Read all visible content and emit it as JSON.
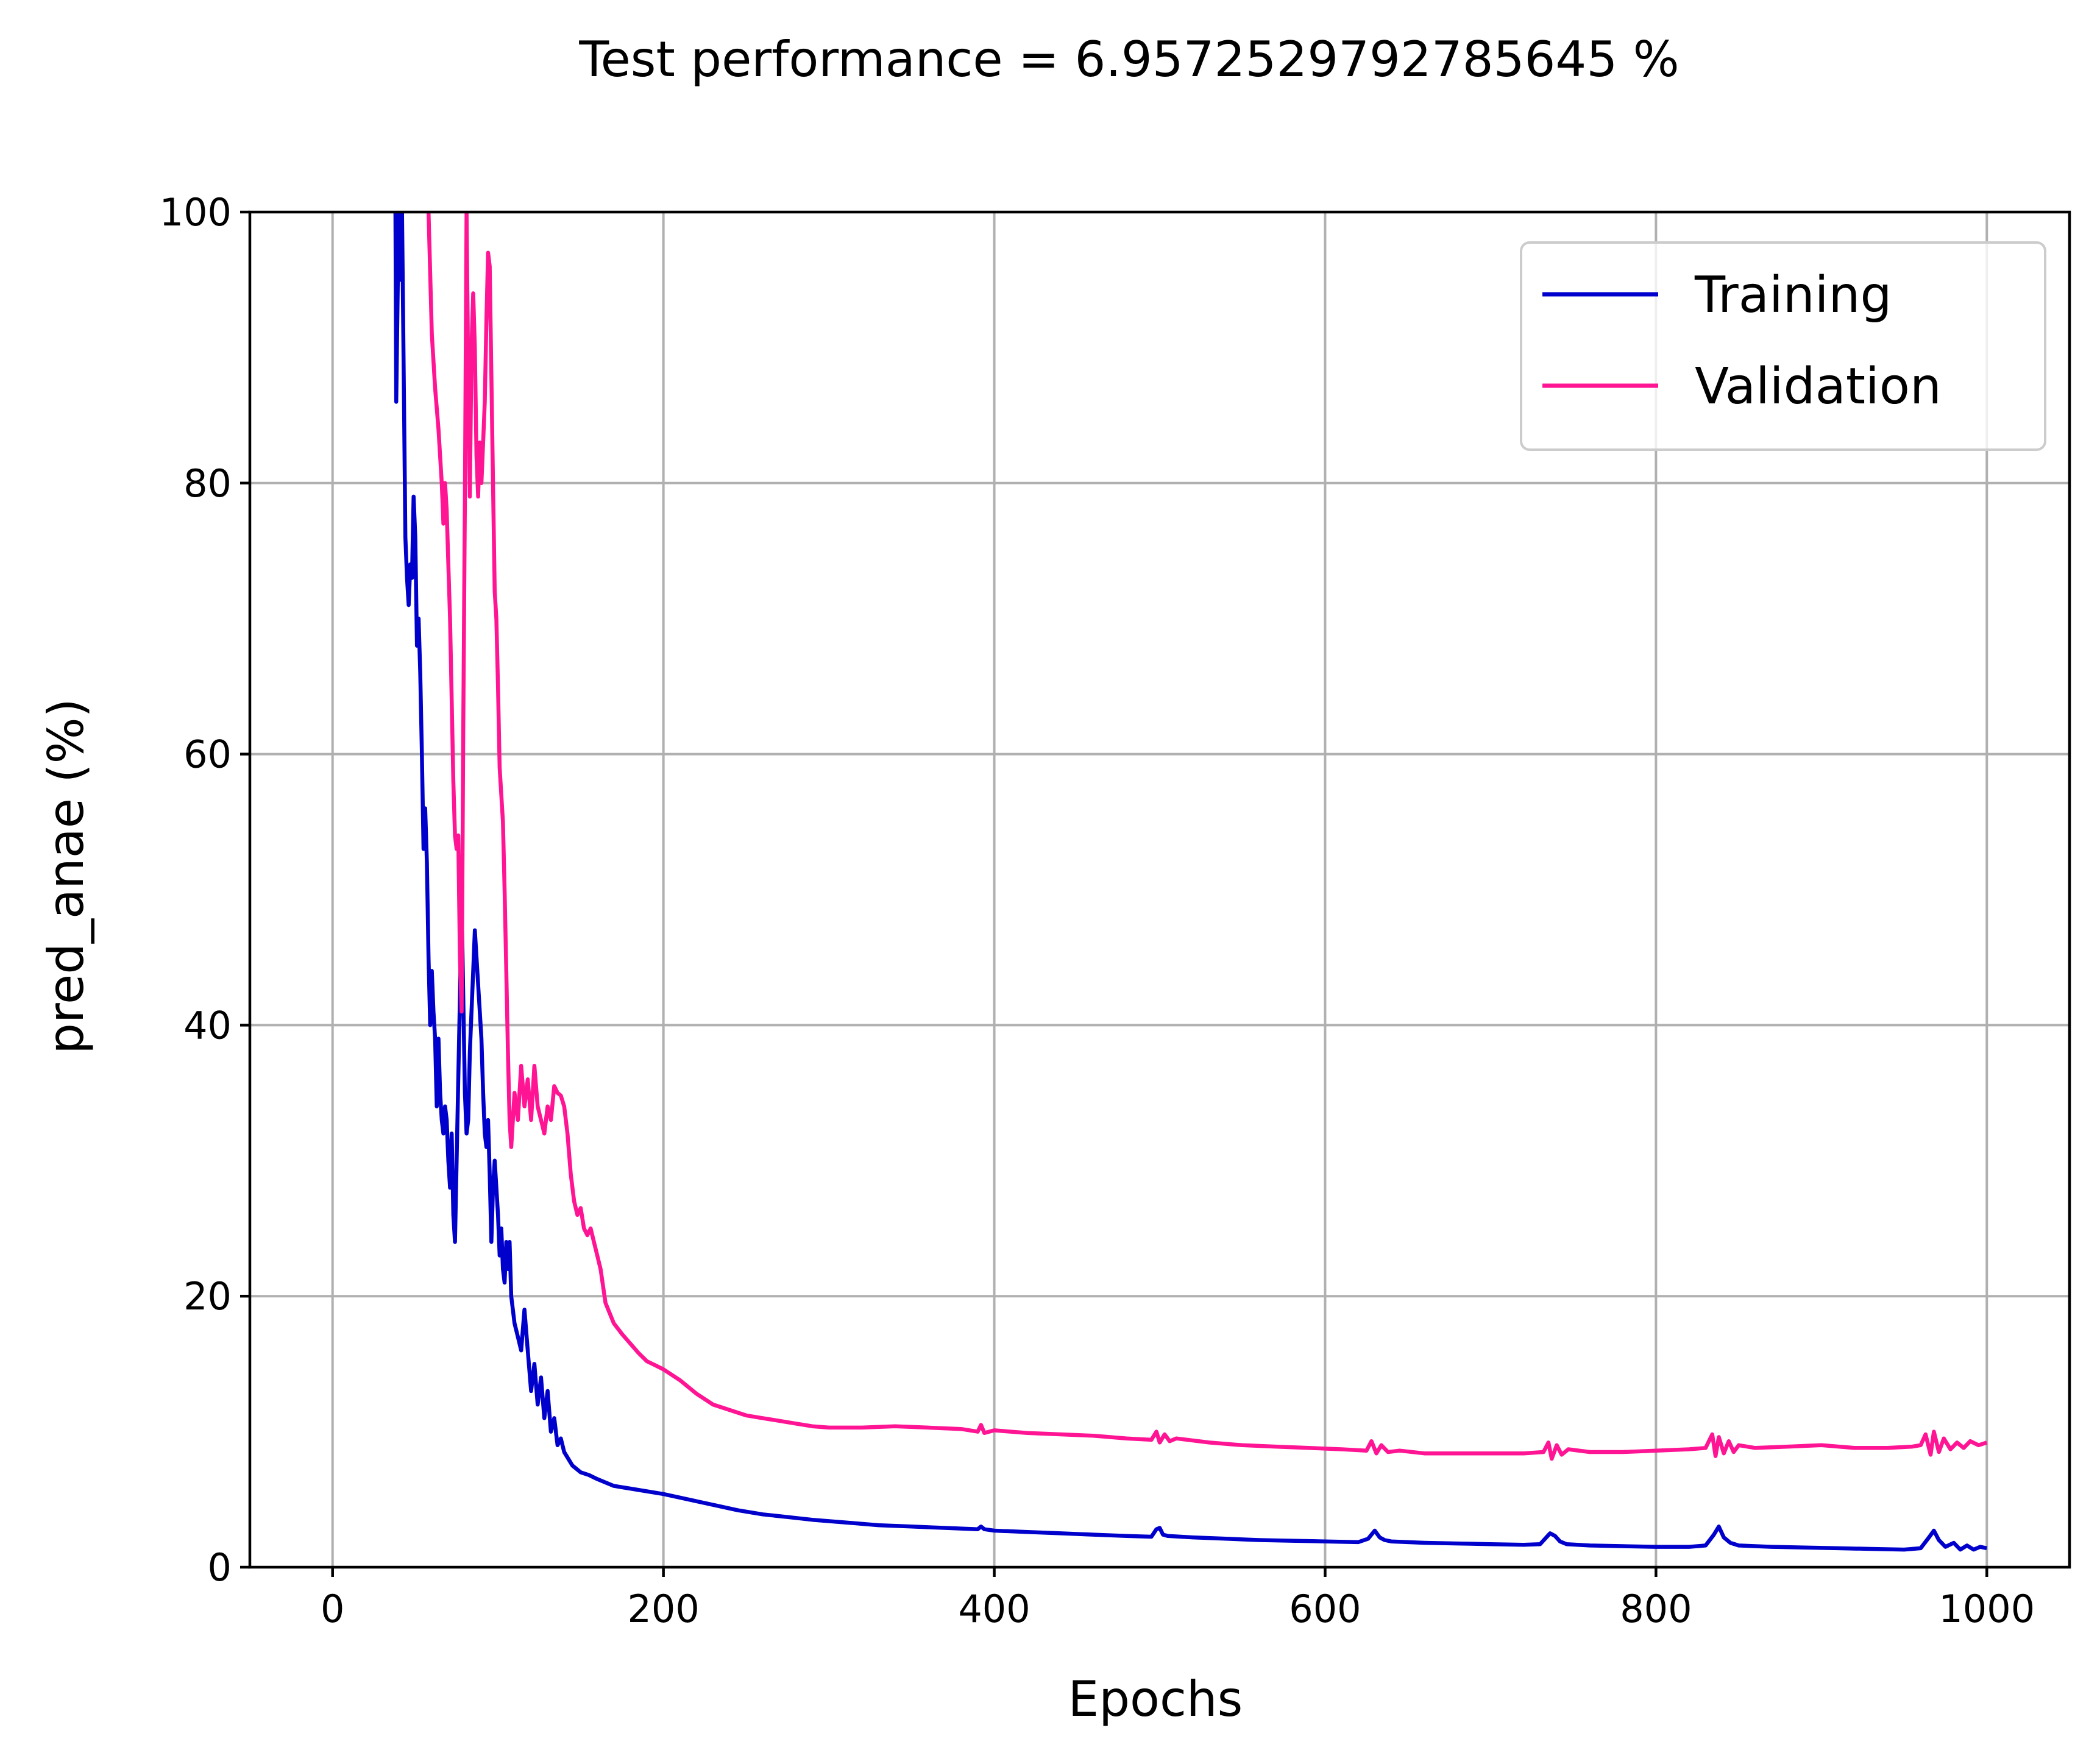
{
  "chart_data": {
    "type": "line",
    "title": "Test performance = 6.9572529792785645 %",
    "xlabel": "Epochs",
    "ylabel": "pred_anae (%)",
    "xlim": [
      -50,
      1050
    ],
    "ylim": [
      0,
      100
    ],
    "xticks": [
      0,
      200,
      400,
      600,
      800,
      1000
    ],
    "yticks": [
      0,
      20,
      40,
      60,
      80,
      100
    ],
    "grid": true,
    "legend_position": "top-right",
    "series": [
      {
        "name": "Training",
        "color": "#0000cc",
        "points": [
          [
            38,
            100
          ],
          [
            38.5,
            86
          ],
          [
            40,
            100
          ],
          [
            41,
            95
          ],
          [
            42,
            100
          ],
          [
            43,
            88
          ],
          [
            44,
            76
          ],
          [
            45,
            73
          ],
          [
            46,
            71
          ],
          [
            47,
            74
          ],
          [
            48,
            73
          ],
          [
            49,
            79
          ],
          [
            50,
            76
          ],
          [
            51,
            68
          ],
          [
            52,
            70
          ],
          [
            53,
            66
          ],
          [
            54,
            60
          ],
          [
            55,
            53
          ],
          [
            56,
            56
          ],
          [
            57,
            52
          ],
          [
            58,
            45
          ],
          [
            59,
            40
          ],
          [
            60,
            44
          ],
          [
            61,
            41
          ],
          [
            62,
            39
          ],
          [
            63,
            34
          ],
          [
            64,
            39
          ],
          [
            65,
            35
          ],
          [
            66,
            33
          ],
          [
            67,
            32
          ],
          [
            68,
            34
          ],
          [
            69,
            33
          ],
          [
            70,
            30
          ],
          [
            71,
            28
          ],
          [
            72,
            32
          ],
          [
            73,
            26
          ],
          [
            74,
            24
          ],
          [
            75,
            30
          ],
          [
            76,
            36
          ],
          [
            77,
            42
          ],
          [
            78,
            49
          ],
          [
            79,
            42
          ],
          [
            80,
            35
          ],
          [
            81,
            32
          ],
          [
            82,
            33
          ],
          [
            83,
            38
          ],
          [
            84,
            41
          ],
          [
            85,
            44
          ],
          [
            86,
            47
          ],
          [
            87,
            45
          ],
          [
            88,
            43
          ],
          [
            89,
            41
          ],
          [
            90,
            39
          ],
          [
            91,
            35
          ],
          [
            92,
            32
          ],
          [
            93,
            31
          ],
          [
            94,
            33
          ],
          [
            95,
            29
          ],
          [
            96,
            24
          ],
          [
            97,
            28
          ],
          [
            98,
            30
          ],
          [
            99,
            28
          ],
          [
            100,
            26
          ],
          [
            101,
            23
          ],
          [
            102,
            25
          ],
          [
            103,
            22
          ],
          [
            104,
            21
          ],
          [
            105,
            24
          ],
          [
            106,
            22
          ],
          [
            107,
            24
          ],
          [
            108,
            20
          ],
          [
            109,
            19
          ],
          [
            110,
            18
          ],
          [
            112,
            17
          ],
          [
            114,
            16
          ],
          [
            116,
            19
          ],
          [
            118,
            16
          ],
          [
            120,
            13
          ],
          [
            122,
            15
          ],
          [
            124,
            12
          ],
          [
            126,
            14
          ],
          [
            128,
            11
          ],
          [
            130,
            13
          ],
          [
            132,
            10
          ],
          [
            134,
            11
          ],
          [
            136,
            9
          ],
          [
            138,
            9.5
          ],
          [
            140,
            8.5
          ],
          [
            145,
            7.5
          ],
          [
            150,
            7
          ],
          [
            155,
            6.8
          ],
          [
            160,
            6.5
          ],
          [
            170,
            6.0
          ],
          [
            180,
            5.8
          ],
          [
            190,
            5.6
          ],
          [
            200,
            5.4
          ],
          [
            215,
            5.0
          ],
          [
            230,
            4.6
          ],
          [
            245,
            4.2
          ],
          [
            260,
            3.9
          ],
          [
            275,
            3.7
          ],
          [
            290,
            3.5
          ],
          [
            310,
            3.3
          ],
          [
            330,
            3.1
          ],
          [
            350,
            3.0
          ],
          [
            370,
            2.9
          ],
          [
            390,
            2.8
          ],
          [
            392,
            3.0
          ],
          [
            394,
            2.8
          ],
          [
            400,
            2.7
          ],
          [
            420,
            2.6
          ],
          [
            440,
            2.5
          ],
          [
            460,
            2.4
          ],
          [
            480,
            2.3
          ],
          [
            495,
            2.25
          ],
          [
            498,
            2.8
          ],
          [
            500,
            2.9
          ],
          [
            502,
            2.4
          ],
          [
            505,
            2.3
          ],
          [
            520,
            2.2
          ],
          [
            540,
            2.1
          ],
          [
            560,
            2.0
          ],
          [
            580,
            1.95
          ],
          [
            600,
            1.9
          ],
          [
            620,
            1.85
          ],
          [
            626,
            2.1
          ],
          [
            630,
            2.7
          ],
          [
            633,
            2.2
          ],
          [
            636,
            2.0
          ],
          [
            640,
            1.9
          ],
          [
            660,
            1.8
          ],
          [
            680,
            1.75
          ],
          [
            700,
            1.7
          ],
          [
            720,
            1.65
          ],
          [
            730,
            1.7
          ],
          [
            736,
            2.5
          ],
          [
            739,
            2.3
          ],
          [
            742,
            1.9
          ],
          [
            746,
            1.7
          ],
          [
            760,
            1.6
          ],
          [
            780,
            1.55
          ],
          [
            800,
            1.5
          ],
          [
            820,
            1.5
          ],
          [
            830,
            1.6
          ],
          [
            835,
            2.4
          ],
          [
            838,
            3.0
          ],
          [
            841,
            2.2
          ],
          [
            845,
            1.8
          ],
          [
            850,
            1.6
          ],
          [
            870,
            1.5
          ],
          [
            890,
            1.45
          ],
          [
            910,
            1.4
          ],
          [
            930,
            1.35
          ],
          [
            950,
            1.3
          ],
          [
            960,
            1.4
          ],
          [
            965,
            2.2
          ],
          [
            968,
            2.7
          ],
          [
            971,
            2.0
          ],
          [
            975,
            1.5
          ],
          [
            980,
            1.8
          ],
          [
            984,
            1.3
          ],
          [
            988,
            1.6
          ],
          [
            992,
            1.3
          ],
          [
            996,
            1.5
          ],
          [
            1000,
            1.4
          ]
        ]
      },
      {
        "name": "Validation",
        "color": "#ff1493",
        "points": [
          [
            58,
            100
          ],
          [
            60,
            91
          ],
          [
            62,
            87
          ],
          [
            64,
            84
          ],
          [
            66,
            80
          ],
          [
            67,
            77
          ],
          [
            68,
            80
          ],
          [
            69,
            78
          ],
          [
            70,
            74
          ],
          [
            71,
            70
          ],
          [
            72,
            64
          ],
          [
            73,
            58
          ],
          [
            74,
            54
          ],
          [
            75,
            53
          ],
          [
            76,
            54
          ],
          [
            77,
            45
          ],
          [
            78,
            41
          ],
          [
            79,
            62
          ],
          [
            80,
            79
          ],
          [
            81,
            100
          ],
          [
            82,
            88
          ],
          [
            83,
            79
          ],
          [
            84,
            90
          ],
          [
            85,
            94
          ],
          [
            86,
            90
          ],
          [
            87,
            82
          ],
          [
            88,
            79
          ],
          [
            89,
            83
          ],
          [
            90,
            80
          ],
          [
            91,
            83
          ],
          [
            92,
            86
          ],
          [
            93,
            92
          ],
          [
            94,
            97
          ],
          [
            95,
            96
          ],
          [
            96,
            88
          ],
          [
            97,
            80
          ],
          [
            98,
            72
          ],
          [
            99,
            70
          ],
          [
            100,
            65
          ],
          [
            101,
            59
          ],
          [
            102,
            57
          ],
          [
            103,
            55
          ],
          [
            104,
            50
          ],
          [
            105,
            44
          ],
          [
            106,
            38
          ],
          [
            107,
            33
          ],
          [
            108,
            31
          ],
          [
            110,
            35
          ],
          [
            112,
            33
          ],
          [
            114,
            37
          ],
          [
            116,
            34
          ],
          [
            118,
            36
          ],
          [
            120,
            33
          ],
          [
            122,
            37
          ],
          [
            124,
            34
          ],
          [
            126,
            33
          ],
          [
            128,
            32
          ],
          [
            130,
            34
          ],
          [
            132,
            33
          ],
          [
            134,
            35.5
          ],
          [
            136,
            35
          ],
          [
            138,
            34.8
          ],
          [
            140,
            34
          ],
          [
            142,
            32
          ],
          [
            144,
            29
          ],
          [
            146,
            27
          ],
          [
            148,
            26
          ],
          [
            150,
            26.5
          ],
          [
            152,
            25
          ],
          [
            154,
            24.5
          ],
          [
            156,
            25
          ],
          [
            158,
            24
          ],
          [
            160,
            23
          ],
          [
            162,
            22
          ],
          [
            165,
            19.5
          ],
          [
            170,
            18
          ],
          [
            175,
            17.2
          ],
          [
            180,
            16.5
          ],
          [
            185,
            15.8
          ],
          [
            190,
            15.2
          ],
          [
            195,
            14.9
          ],
          [
            200,
            14.6
          ],
          [
            210,
            13.8
          ],
          [
            220,
            12.8
          ],
          [
            230,
            12.0
          ],
          [
            240,
            11.6
          ],
          [
            250,
            11.2
          ],
          [
            260,
            11.0
          ],
          [
            270,
            10.8
          ],
          [
            280,
            10.6
          ],
          [
            290,
            10.4
          ],
          [
            300,
            10.3
          ],
          [
            320,
            10.3
          ],
          [
            340,
            10.4
          ],
          [
            360,
            10.3
          ],
          [
            380,
            10.2
          ],
          [
            390,
            10.0
          ],
          [
            392,
            10.5
          ],
          [
            394,
            9.9
          ],
          [
            400,
            10.1
          ],
          [
            420,
            9.9
          ],
          [
            440,
            9.8
          ],
          [
            460,
            9.7
          ],
          [
            480,
            9.5
          ],
          [
            495,
            9.4
          ],
          [
            498,
            10.0
          ],
          [
            500,
            9.2
          ],
          [
            503,
            9.8
          ],
          [
            506,
            9.3
          ],
          [
            510,
            9.5
          ],
          [
            530,
            9.2
          ],
          [
            550,
            9.0
          ],
          [
            570,
            8.9
          ],
          [
            590,
            8.8
          ],
          [
            610,
            8.7
          ],
          [
            625,
            8.6
          ],
          [
            628,
            9.3
          ],
          [
            631,
            8.4
          ],
          [
            634,
            9.0
          ],
          [
            638,
            8.5
          ],
          [
            645,
            8.6
          ],
          [
            660,
            8.4
          ],
          [
            680,
            8.4
          ],
          [
            700,
            8.4
          ],
          [
            720,
            8.4
          ],
          [
            732,
            8.5
          ],
          [
            735,
            9.2
          ],
          [
            737,
            8.0
          ],
          [
            740,
            9.0
          ],
          [
            743,
            8.3
          ],
          [
            747,
            8.7
          ],
          [
            760,
            8.5
          ],
          [
            780,
            8.5
          ],
          [
            800,
            8.6
          ],
          [
            820,
            8.7
          ],
          [
            830,
            8.8
          ],
          [
            834,
            9.8
          ],
          [
            836,
            8.2
          ],
          [
            838,
            9.6
          ],
          [
            841,
            8.4
          ],
          [
            844,
            9.3
          ],
          [
            847,
            8.5
          ],
          [
            850,
            9.0
          ],
          [
            860,
            8.8
          ],
          [
            880,
            8.9
          ],
          [
            900,
            9.0
          ],
          [
            920,
            8.8
          ],
          [
            940,
            8.8
          ],
          [
            955,
            8.9
          ],
          [
            960,
            9.0
          ],
          [
            963,
            9.8
          ],
          [
            966,
            8.3
          ],
          [
            968,
            10.0
          ],
          [
            971,
            8.5
          ],
          [
            974,
            9.5
          ],
          [
            978,
            8.7
          ],
          [
            982,
            9.2
          ],
          [
            986,
            8.8
          ],
          [
            990,
            9.3
          ],
          [
            995,
            9.0
          ],
          [
            1000,
            9.2
          ]
        ]
      }
    ]
  }
}
